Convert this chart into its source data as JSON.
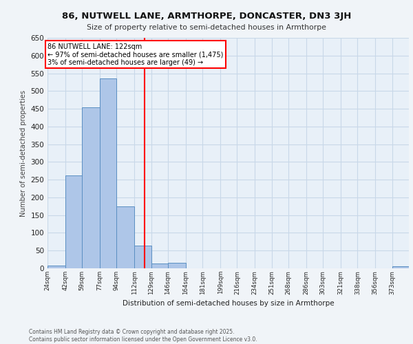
{
  "title_line1": "86, NUTWELL LANE, ARMTHORPE, DONCASTER, DN3 3JH",
  "title_line2": "Size of property relative to semi-detached houses in Armthorpe",
  "xlabel": "Distribution of semi-detached houses by size in Armthorpe",
  "ylabel": "Number of semi-detached properties",
  "footer": "Contains HM Land Registry data © Crown copyright and database right 2025.\nContains public sector information licensed under the Open Government Licence v3.0.",
  "bin_labels": [
    "24sqm",
    "42sqm",
    "59sqm",
    "77sqm",
    "94sqm",
    "112sqm",
    "129sqm",
    "146sqm",
    "164sqm",
    "181sqm",
    "199sqm",
    "216sqm",
    "234sqm",
    "251sqm",
    "268sqm",
    "286sqm",
    "303sqm",
    "321sqm",
    "338sqm",
    "356sqm",
    "373sqm"
  ],
  "bin_edges": [
    24,
    42,
    59,
    77,
    94,
    112,
    129,
    146,
    164,
    181,
    199,
    216,
    234,
    251,
    268,
    286,
    303,
    321,
    338,
    356,
    373
  ],
  "bar_heights": [
    7,
    262,
    455,
    535,
    175,
    65,
    14,
    16,
    0,
    0,
    0,
    0,
    0,
    0,
    0,
    0,
    0,
    0,
    0,
    0,
    5
  ],
  "bar_color": "#aec6e8",
  "bar_edge_color": "#5a8fc2",
  "grid_color": "#c8d8e8",
  "background_color": "#e8f0f8",
  "fig_background_color": "#f0f4f8",
  "red_line_x": 122,
  "annotation_text": "86 NUTWELL LANE: 122sqm\n← 97% of semi-detached houses are smaller (1,475)\n3% of semi-detached houses are larger (49) →",
  "ylim": [
    0,
    650
  ],
  "yticks": [
    0,
    50,
    100,
    150,
    200,
    250,
    300,
    350,
    400,
    450,
    500,
    550,
    600,
    650
  ]
}
